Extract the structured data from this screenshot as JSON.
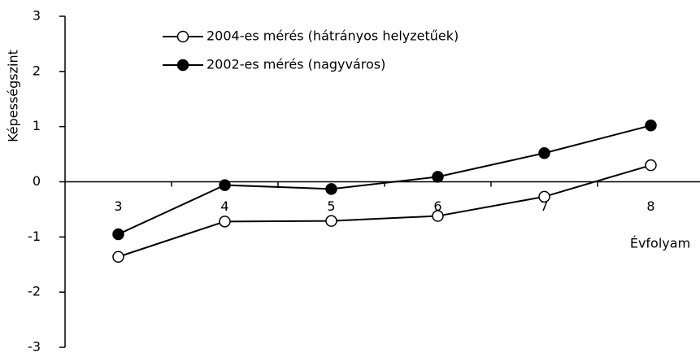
{
  "chart_data": {
    "type": "line",
    "x_label": "Évfolyam",
    "y_label": "Képességszint",
    "categories": [
      "3",
      "4",
      "5",
      "6",
      "7",
      "8"
    ],
    "series": [
      {
        "name": "2004-es mérés (hátrányos helyzetűek)",
        "color": "#000000",
        "marker_fill": "#ffffff",
        "values": [
          -1.36,
          -0.72,
          -0.71,
          -0.62,
          -0.27,
          0.3
        ]
      },
      {
        "name": "2002-es mérés (nagyváros)",
        "color": "#000000",
        "marker_fill": "#000000",
        "values": [
          -0.95,
          -0.06,
          -0.13,
          0.09,
          0.52,
          1.02
        ]
      }
    ],
    "ylim": [
      -3,
      3
    ],
    "yticks": [
      -3,
      -2,
      -1,
      0,
      1,
      2,
      3
    ],
    "grid": false,
    "legend": "top-left"
  }
}
